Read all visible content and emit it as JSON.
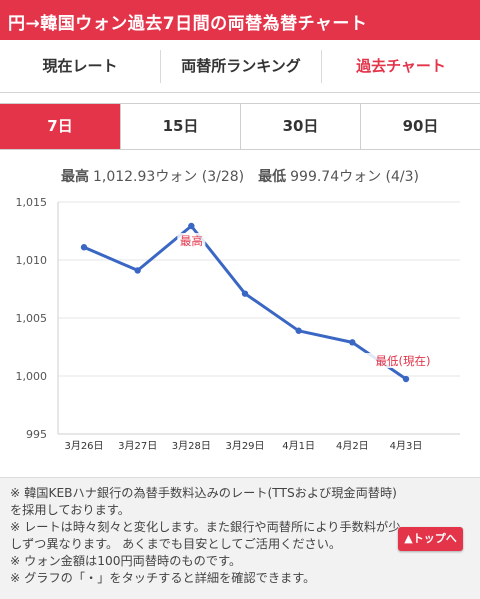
{
  "header": {
    "title": "円→韓国ウォン過去7日間の両替為替チャート"
  },
  "nav": {
    "items": [
      "現在レート",
      "両替所ランキング",
      "過去チャート"
    ],
    "active_index": 2
  },
  "range_tabs": {
    "items": [
      "7日",
      "15日",
      "30日",
      "90日"
    ],
    "active_index": 0
  },
  "summary": {
    "high_label": "最高",
    "high_value": "1,012.93ウォン (3/28)",
    "low_label": "最低",
    "low_value": "999.74ウォン (4/3)"
  },
  "chart_data": {
    "type": "line",
    "categories": [
      "3月26日",
      "3月27日",
      "3月28日",
      "3月29日",
      "4月1日",
      "4月2日",
      "4月3日"
    ],
    "series": [
      {
        "values": [
          1011.1,
          1009.1,
          1012.93,
          1007.1,
          1003.9,
          1002.9,
          999.74
        ]
      }
    ],
    "ylim": [
      995,
      1015
    ],
    "yticks": [
      995,
      1000,
      1005,
      1010,
      1015
    ],
    "ytick_labels": [
      "995",
      "1,000",
      "1,005",
      "1,010",
      "1,015"
    ],
    "grid": true,
    "annotations": [
      {
        "text": "最高",
        "index": 2
      },
      {
        "text": "最低(現在)",
        "index": 6
      }
    ],
    "line_color": "#3a66c4"
  },
  "notes": [
    "※ 韓国KEBハナ銀行の為替手数料込みのレート(TTSおよび現金両替時)",
    "を採用しております。",
    "※ レートは時々刻々と変化します。また銀行や両替所により手数料が少",
    "しずつ異なります。 あくまでも目安としてご活用ください。",
    "※ ウォン金額は100円両替時のものです。",
    "※ グラフの「・」をタッチすると詳細を確認できます。"
  ],
  "top_button": {
    "label": "▲トップへ"
  },
  "colors": {
    "accent": "#e3344a",
    "line": "#3a66c4"
  }
}
